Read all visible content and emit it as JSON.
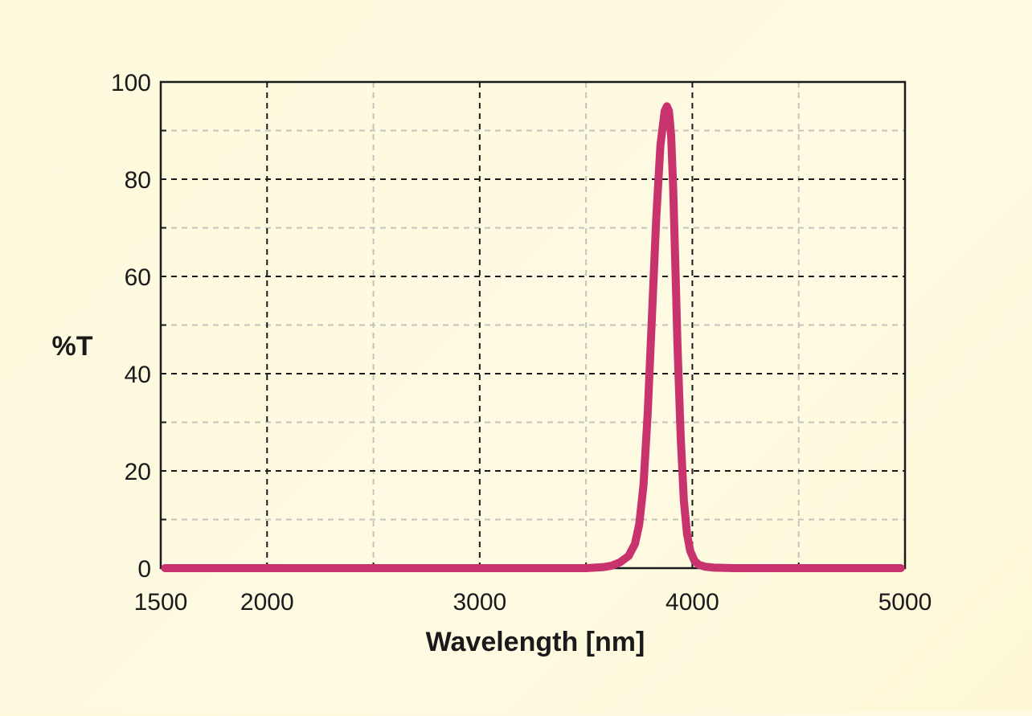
{
  "chart_data": {
    "type": "line",
    "xlabel": "Wavelength [nm]",
    "ylabel": "%T",
    "xlim": [
      1500,
      5000
    ],
    "ylim": [
      0,
      100
    ],
    "x_ticks": [
      1500,
      2000,
      3000,
      4000,
      5000
    ],
    "y_ticks": [
      0,
      20,
      40,
      60,
      80,
      100
    ],
    "x_major_grid": [
      2000,
      3000,
      4000
    ],
    "x_minor_grid": [
      2500,
      3500,
      4500
    ],
    "y_major_grid": [
      20,
      40,
      60,
      80
    ],
    "y_minor_grid": [
      10,
      30,
      50,
      70,
      90
    ],
    "grid": true,
    "series": [
      {
        "color": "#c8336e",
        "x": [
          1520,
          2000,
          3000,
          3500,
          3580,
          3620,
          3660,
          3700,
          3730,
          3750,
          3770,
          3790,
          3810,
          3830,
          3850,
          3870,
          3880,
          3890,
          3900,
          3910,
          3920,
          3930,
          3945,
          3960,
          3975,
          3990,
          4010,
          4030,
          4060,
          4100,
          4200,
          4500,
          4980
        ],
        "y": [
          0,
          0,
          0,
          0,
          0.2,
          0.5,
          1.2,
          2.5,
          5,
          9,
          17,
          32,
          52,
          72,
          87,
          94,
          95,
          94,
          89,
          78,
          62,
          46,
          27,
          14,
          7,
          3.5,
          1.5,
          0.7,
          0.3,
          0.1,
          0,
          0,
          0
        ]
      }
    ]
  }
}
